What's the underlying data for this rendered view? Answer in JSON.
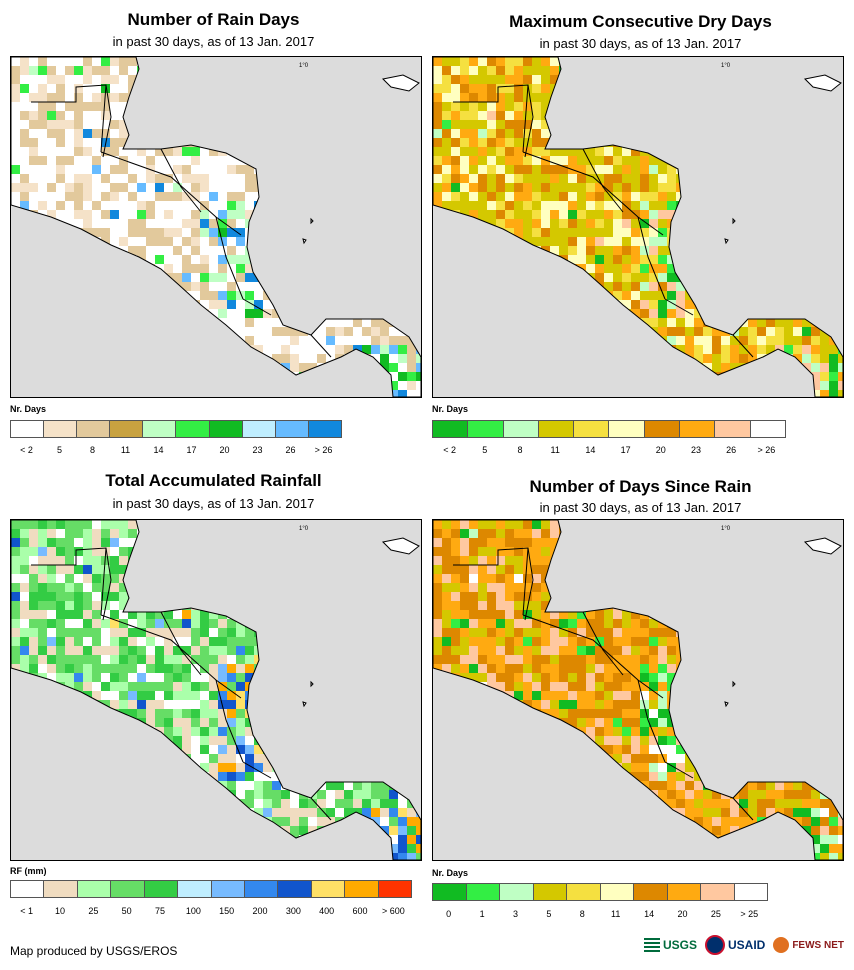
{
  "panels": [
    {
      "id": "rain-days",
      "title": "Number of Rain Days",
      "subtitle": "in past 30 days, as of 13 Jan. 2017",
      "legend_title": "Nr. Days",
      "legend_labels": [
        "< 2",
        "5",
        "8",
        "11",
        "14",
        "17",
        "20",
        "23",
        "26",
        "> 26"
      ],
      "legend_colors": [
        "#ffffff",
        "#f5e2c8",
        "#e2c99c",
        "#c8a240",
        "#bfffc4",
        "#33ee44",
        "#11bb22",
        "#bfeeff",
        "#66bbff",
        "#1188dd"
      ],
      "land_base": "#f5e2c8",
      "cell_palette": [
        "#ffffff",
        "#ffffff",
        "#f5e2c8",
        "#e2c99c",
        "#e2c99c",
        "#ffffff"
      ],
      "accent_palette": [
        "#33ee44",
        "#11bb22",
        "#bfffc4",
        "#66bbff",
        "#1188dd"
      ]
    },
    {
      "id": "max-dry-days",
      "title": "Maximum Consecutive Dry Days",
      "subtitle": "in past 30 days, as of 13 Jan. 2017",
      "legend_title": "Nr. Days",
      "legend_labels": [
        "< 2",
        "5",
        "8",
        "11",
        "14",
        "17",
        "20",
        "23",
        "26",
        "> 26"
      ],
      "legend_colors": [
        "#11bb22",
        "#33ee44",
        "#bfffc4",
        "#d4c800",
        "#f5e040",
        "#ffffc0",
        "#dd8800",
        "#ffaa11",
        "#ffc8a0",
        "#ffffff"
      ],
      "land_base": "#d4c800",
      "cell_palette": [
        "#d4c800",
        "#f5e040",
        "#ffffc0",
        "#dd8800",
        "#ffaa11",
        "#d4c800"
      ],
      "accent_palette": [
        "#11bb22",
        "#33ee44",
        "#bfffc4",
        "#ffc8a0"
      ]
    },
    {
      "id": "total-rainfall",
      "title": "Total Accumulated Rainfall",
      "subtitle": "in past 30 days, as of 13 Jan. 2017",
      "legend_title": "RF (mm)",
      "legend_labels": [
        "< 1",
        "10",
        "25",
        "50",
        "75",
        "100",
        "150",
        "200",
        "300",
        "400",
        "600",
        "> 600"
      ],
      "legend_colors": [
        "#ffffff",
        "#f0dcc0",
        "#aaffaa",
        "#66dd66",
        "#33cc44",
        "#bfeeff",
        "#77bbff",
        "#3388ee",
        "#1155cc",
        "#ffe066",
        "#ffaa00",
        "#ff3300"
      ],
      "land_base": "#aaffaa",
      "cell_palette": [
        "#66dd66",
        "#aaffaa",
        "#ffffff",
        "#f0dcc0",
        "#66dd66",
        "#33cc44"
      ],
      "accent_palette": [
        "#77bbff",
        "#3388ee",
        "#1155cc",
        "#ffe066",
        "#ffaa00"
      ]
    },
    {
      "id": "days-since-rain",
      "title": "Number of Days Since Rain",
      "subtitle": "in past 30 days, as of 13 Jan. 2017",
      "legend_title": "Nr. Days",
      "legend_labels": [
        "0",
        "1",
        "3",
        "5",
        "8",
        "11",
        "14",
        "20",
        "25",
        "> 25"
      ],
      "legend_colors": [
        "#11bb22",
        "#33ee44",
        "#bfffc4",
        "#d4c800",
        "#f5e040",
        "#ffffc0",
        "#dd8800",
        "#ffaa11",
        "#ffc8a0",
        "#ffffff"
      ],
      "land_base": "#ffaa11",
      "cell_palette": [
        "#ffaa11",
        "#dd8800",
        "#d4c800",
        "#ffaa11",
        "#ffc8a0",
        "#dd8800"
      ],
      "accent_palette": [
        "#11bb22",
        "#33ee44",
        "#bfffc4",
        "#ffffff"
      ]
    }
  ],
  "credit": "Map produced by USGS/EROS",
  "logos": {
    "usgs": "USGS",
    "usaid": "USAID",
    "fews": "FEWS NET"
  },
  "scale_mark": "1°0"
}
